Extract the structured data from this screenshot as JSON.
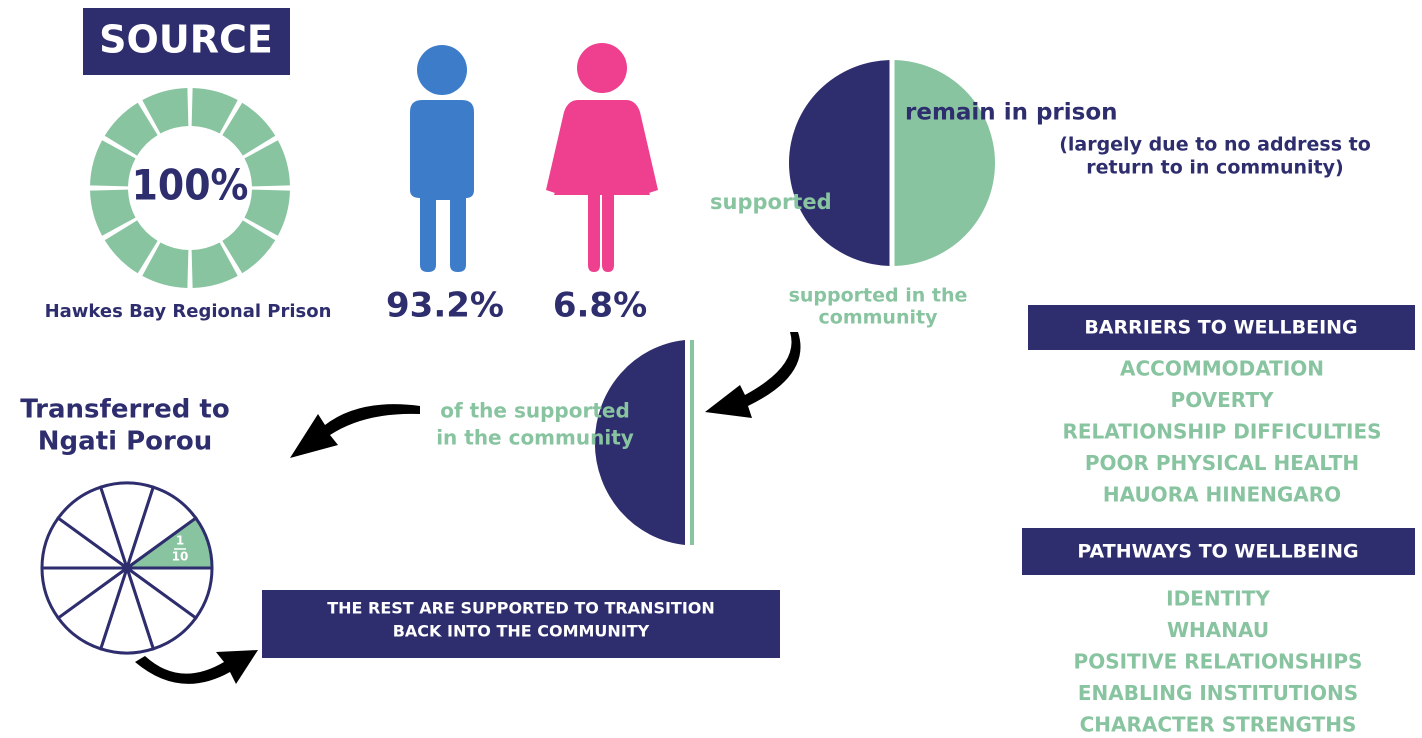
{
  "source": {
    "title": "SOURCE",
    "percent": "100%",
    "prison": "Hawkes Bay Regional Prison"
  },
  "gender": {
    "male": "93.2%",
    "female": "6.8%"
  },
  "outcome": {
    "remain": "remain in prison",
    "remain_note": [
      "(largely due to no address to",
      "return to in community)"
    ],
    "supported": "supported",
    "supported_community": [
      "supported in the",
      "community"
    ]
  },
  "subset": {
    "label": [
      "of the supported",
      "in the community"
    ]
  },
  "transfer": {
    "title": [
      "Transferred to",
      "Ngati Porou"
    ],
    "fraction_top": "1",
    "fraction_bottom": "10",
    "rest": [
      "THE REST ARE SUPPORTED TO TRANSITION",
      "BACK INTO THE COMMUNITY"
    ]
  },
  "barriers": {
    "title": "BARRIERS TO WELLBEING",
    "items": [
      "ACCOMMODATION",
      "POVERTY",
      "RELATIONSHIP DIFFICULTIES",
      "POOR PHYSICAL HEALTH",
      "HAUORA HINENGARO"
    ]
  },
  "pathways": {
    "title": "PATHWAYS TO WELLBEING",
    "items": [
      "IDENTITY",
      "WHANAU",
      "POSITIVE RELATIONSHIPS",
      "ENABLING INSTITUTIONS",
      "CHARACTER STRENGTHS"
    ]
  }
}
